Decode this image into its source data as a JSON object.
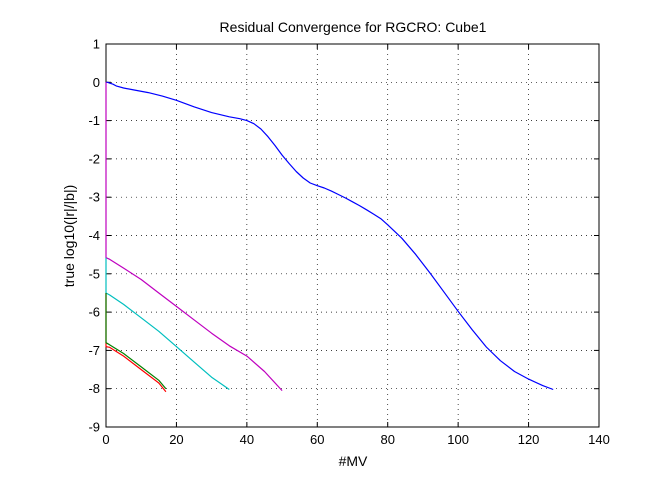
{
  "chart_data": {
    "type": "line",
    "title": "Residual Convergence for RGCRO: Cube1",
    "xlabel": "#MV",
    "ylabel": "true log10(|r|/|b|)",
    "xlim": [
      0,
      140
    ],
    "ylim": [
      -9,
      1
    ],
    "xticks": [
      0,
      20,
      40,
      60,
      80,
      100,
      120,
      140
    ],
    "yticks": [
      -9,
      -8,
      -7,
      -6,
      -5,
      -4,
      -3,
      -2,
      -1,
      0,
      1
    ],
    "grid": true,
    "series": [
      {
        "color": "#0000ff",
        "x": [
          0,
          0.5,
          1,
          2,
          3,
          5,
          8,
          12,
          16,
          20,
          25,
          30,
          35,
          38,
          40,
          42,
          44,
          46,
          48,
          50,
          52,
          54,
          56,
          58,
          60,
          62,
          64,
          66,
          68,
          70,
          72,
          74,
          76,
          78,
          80,
          84,
          88,
          92,
          96,
          100,
          104,
          108,
          112,
          116,
          120,
          124,
          127
        ],
        "y": [
          0.0,
          0.0,
          -0.02,
          -0.05,
          -0.1,
          -0.15,
          -0.2,
          -0.27,
          -0.36,
          -0.47,
          -0.64,
          -0.79,
          -0.9,
          -0.95,
          -1.0,
          -1.08,
          -1.22,
          -1.42,
          -1.65,
          -1.9,
          -2.12,
          -2.33,
          -2.5,
          -2.63,
          -2.7,
          -2.76,
          -2.84,
          -2.93,
          -3.02,
          -3.12,
          -3.22,
          -3.33,
          -3.44,
          -3.56,
          -3.72,
          -4.07,
          -4.5,
          -4.98,
          -5.48,
          -5.98,
          -6.46,
          -6.91,
          -7.27,
          -7.55,
          -7.75,
          -7.92,
          -8.02
        ]
      },
      {
        "color": "#bf00bf",
        "x": [
          0,
          0,
          1,
          5,
          10,
          15,
          20,
          25,
          30,
          35,
          40,
          45,
          50
        ],
        "y": [
          0,
          -4.58,
          -4.62,
          -4.85,
          -5.15,
          -5.5,
          -5.85,
          -6.2,
          -6.55,
          -6.88,
          -7.15,
          -7.55,
          -8.05
        ]
      },
      {
        "color": "#00bfbf",
        "x": [
          0,
          0,
          1,
          5,
          10,
          15,
          20,
          25,
          30,
          35
        ],
        "y": [
          -4.58,
          -5.5,
          -5.55,
          -5.8,
          -6.15,
          -6.5,
          -6.9,
          -7.3,
          -7.7,
          -8.02
        ]
      },
      {
        "color": "#ff0000",
        "x": [
          0,
          0,
          1,
          5,
          10,
          15,
          17
        ],
        "y": [
          -5.5,
          -6.9,
          -6.92,
          -7.15,
          -7.5,
          -7.85,
          -8.08
        ]
      },
      {
        "color": "#008000",
        "x": [
          0,
          0,
          1,
          5,
          10,
          15,
          17
        ],
        "y": [
          -5.5,
          -6.8,
          -6.85,
          -7.08,
          -7.43,
          -7.78,
          -8.0
        ]
      }
    ]
  }
}
